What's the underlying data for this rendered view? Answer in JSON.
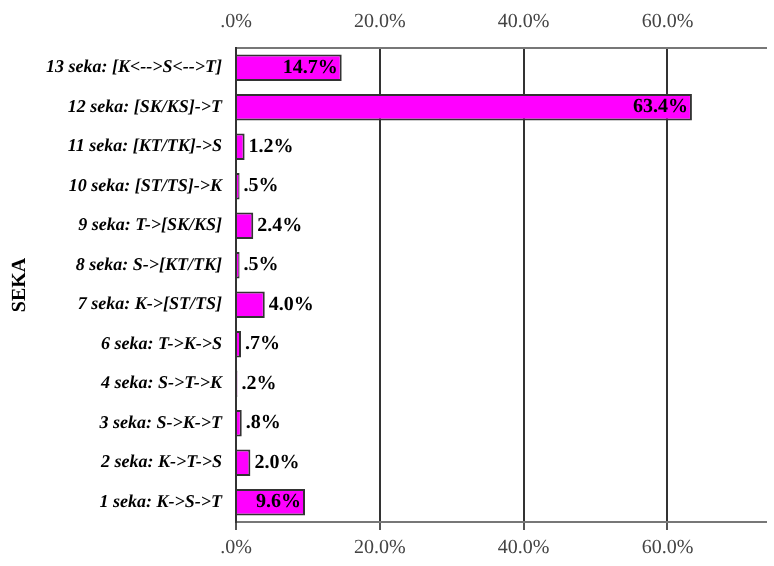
{
  "chart_data": {
    "type": "bar",
    "orientation": "horizontal",
    "ylabel": "SEKA",
    "categories": [
      "13 seka: [K<-->S<-->T]",
      "12 seka: [SK/KS]->T",
      "11 seka: [KT/TK]->S",
      "10 seka: [ST/TS]->K",
      "9 seka: T->[SK/KS]",
      "8 seka: S->[KT/TK]",
      "7 seka: K->[ST/TS]",
      "6 seka: T->K->S",
      "4 seka: S->T->K",
      "3 seka: S->K->T",
      "2 seka: K->T->S",
      "1 seka: K->S->T"
    ],
    "values": [
      14.7,
      63.4,
      1.2,
      0.5,
      2.4,
      0.5,
      4.0,
      0.7,
      0.2,
      0.8,
      2.0,
      9.6
    ],
    "value_labels": [
      "14.7%",
      "63.4%",
      "1.2%",
      ".5%",
      "2.4%",
      ".5%",
      "4.0%",
      ".7%",
      ".2%",
      ".8%",
      "2.0%",
      "9.6%"
    ],
    "color": "#ff00ff",
    "xlim": [
      0,
      73.7
    ],
    "xticks": [
      {
        "value": 0,
        "label": ".0%"
      },
      {
        "value": 20,
        "label": "20.0%"
      },
      {
        "value": 40,
        "label": "40.0%"
      },
      {
        "value": 60,
        "label": "60.0%"
      }
    ],
    "x2lim": [
      0,
      73.7
    ],
    "x2ticks": [
      {
        "value": 0,
        "label": ".0%"
      },
      {
        "value": 20,
        "label": "20.0%"
      },
      {
        "value": 40,
        "label": "40.0%"
      },
      {
        "value": 60,
        "label": "60.0%"
      }
    ],
    "grid": "x",
    "legend": false
  }
}
